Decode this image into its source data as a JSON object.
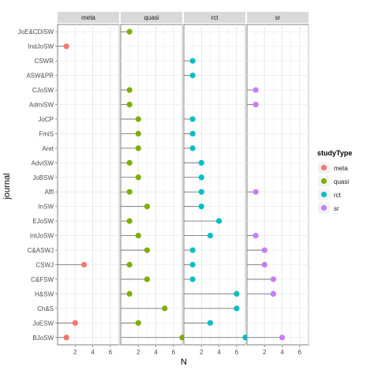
{
  "chart_data": {
    "type": "scatter",
    "style": "lollipop-facets",
    "xlabel": "N",
    "ylabel": "journal",
    "xlim": [
      0,
      7
    ],
    "x_ticks": [
      2,
      4,
      6
    ],
    "grid": true,
    "legend": {
      "title": "studyType",
      "placement": "right"
    },
    "journals": [
      "JoE&CDiSW",
      "IndJoSW",
      "CSWR",
      "ASW&PR",
      "CJoSW",
      "AdmiSW",
      "JoCP",
      "FmiS",
      "Aret",
      "AdviSW",
      "JoBSW",
      "Affl",
      "InSW",
      "EJoSW",
      "IntJoSW",
      "C&ASWJ",
      "CSWJ",
      "C&FSW",
      "H&SW",
      "Ch&S",
      "JoESW",
      "BJoSW"
    ],
    "series": [
      {
        "name": "meta",
        "color": "#F8766D",
        "points": [
          {
            "journal": "IndJoSW",
            "n": 1
          },
          {
            "journal": "CSWJ",
            "n": 3
          },
          {
            "journal": "JoESW",
            "n": 2
          },
          {
            "journal": "BJoSW",
            "n": 1
          }
        ]
      },
      {
        "name": "quasi",
        "color": "#7CAE00",
        "points": [
          {
            "journal": "JoE&CDiSW",
            "n": 1
          },
          {
            "journal": "CJoSW",
            "n": 1
          },
          {
            "journal": "AdmiSW",
            "n": 1
          },
          {
            "journal": "JoCP",
            "n": 2
          },
          {
            "journal": "FmiS",
            "n": 2
          },
          {
            "journal": "Aret",
            "n": 2
          },
          {
            "journal": "AdviSW",
            "n": 1
          },
          {
            "journal": "JoBSW",
            "n": 2
          },
          {
            "journal": "Affl",
            "n": 1
          },
          {
            "journal": "InSW",
            "n": 3
          },
          {
            "journal": "EJoSW",
            "n": 1
          },
          {
            "journal": "IntJoSW",
            "n": 2
          },
          {
            "journal": "C&ASWJ",
            "n": 3
          },
          {
            "journal": "CSWJ",
            "n": 1
          },
          {
            "journal": "C&FSW",
            "n": 3
          },
          {
            "journal": "H&SW",
            "n": 1
          },
          {
            "journal": "Ch&S",
            "n": 5
          },
          {
            "journal": "JoESW",
            "n": 2
          },
          {
            "journal": "BJoSW",
            "n": 7
          }
        ]
      },
      {
        "name": "rct",
        "color": "#00BFC4",
        "points": [
          {
            "journal": "CSWR",
            "n": 1
          },
          {
            "journal": "ASW&PR",
            "n": 1
          },
          {
            "journal": "JoCP",
            "n": 1
          },
          {
            "journal": "FmiS",
            "n": 1
          },
          {
            "journal": "Aret",
            "n": 1
          },
          {
            "journal": "AdviSW",
            "n": 2
          },
          {
            "journal": "JoBSW",
            "n": 2
          },
          {
            "journal": "Affl",
            "n": 2
          },
          {
            "journal": "InSW",
            "n": 2
          },
          {
            "journal": "EJoSW",
            "n": 4
          },
          {
            "journal": "IntJoSW",
            "n": 3
          },
          {
            "journal": "C&ASWJ",
            "n": 1
          },
          {
            "journal": "CSWJ",
            "n": 1
          },
          {
            "journal": "C&FSW",
            "n": 1
          },
          {
            "journal": "H&SW",
            "n": 6
          },
          {
            "journal": "Ch&S",
            "n": 6
          },
          {
            "journal": "JoESW",
            "n": 3
          },
          {
            "journal": "BJoSW",
            "n": 7
          }
        ]
      },
      {
        "name": "sr",
        "color": "#C77CFF",
        "points": [
          {
            "journal": "CJoSW",
            "n": 1
          },
          {
            "journal": "AdmiSW",
            "n": 1
          },
          {
            "journal": "Affl",
            "n": 1
          },
          {
            "journal": "IntJoSW",
            "n": 1
          },
          {
            "journal": "C&ASWJ",
            "n": 2
          },
          {
            "journal": "CSWJ",
            "n": 2
          },
          {
            "journal": "C&FSW",
            "n": 3
          },
          {
            "journal": "H&SW",
            "n": 3
          },
          {
            "journal": "BJoSW",
            "n": 4
          }
        ]
      }
    ]
  }
}
